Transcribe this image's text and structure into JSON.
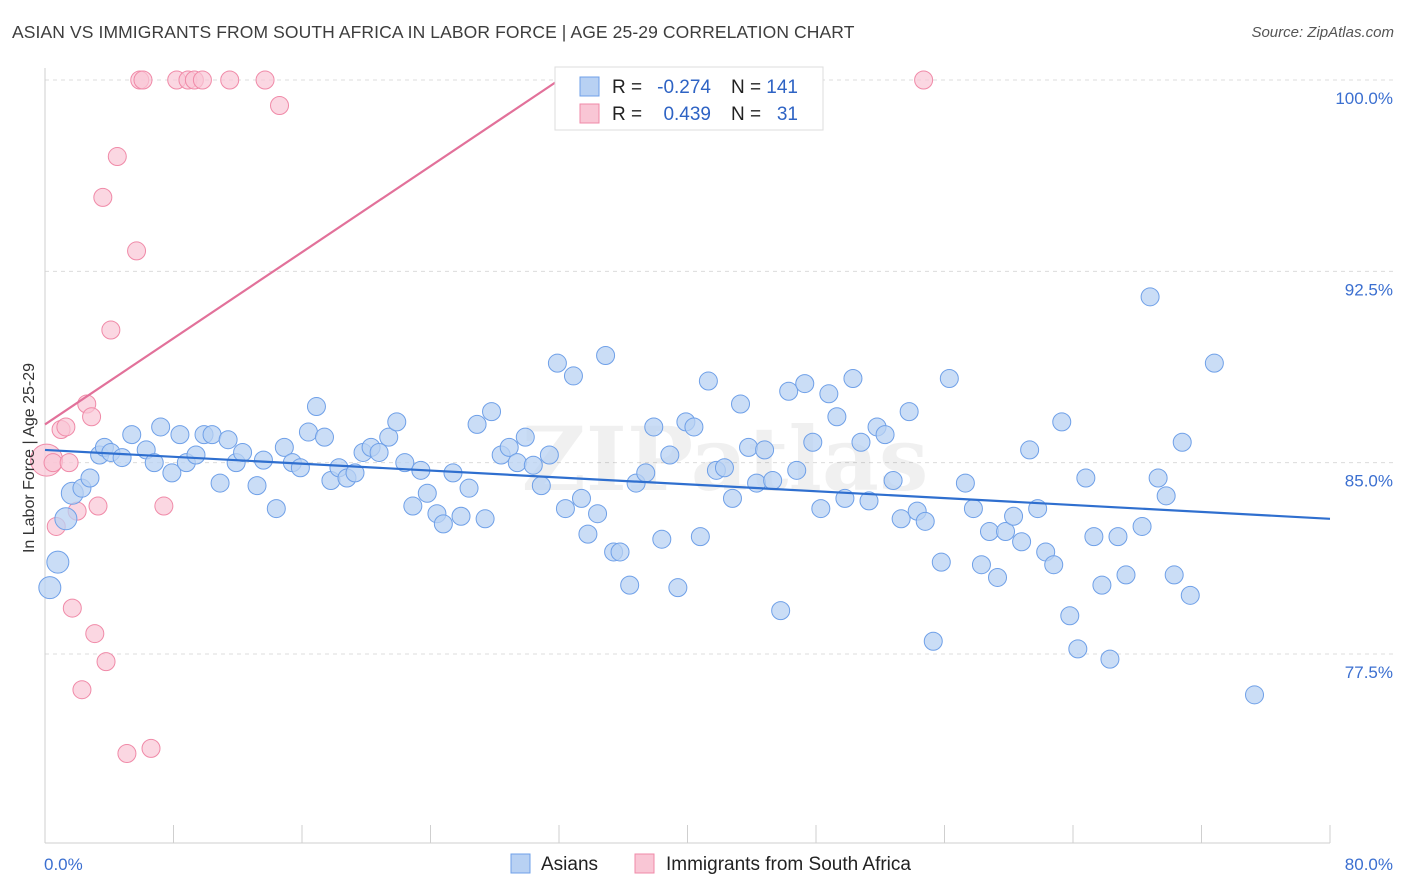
{
  "title": "ASIAN VS IMMIGRANTS FROM SOUTH AFRICA IN LABOR FORCE | AGE 25-29 CORRELATION CHART",
  "source": "Source: ZipAtlas.com",
  "watermark": "ZIPatlas",
  "chart_data": {
    "type": "scatter",
    "ylabel": "In Labor Force | Age 25-29",
    "xlim": [
      0,
      80
    ],
    "ylim": [
      71.0,
      100.8
    ],
    "x_tick_labels": [
      {
        "value": 0,
        "label": "0.0%"
      },
      {
        "value": 80,
        "label": "80.0%"
      }
    ],
    "y_ticks": [
      {
        "value": 100.0,
        "label": "100.0%"
      },
      {
        "value": 92.5,
        "label": "92.5%"
      },
      {
        "value": 85.0,
        "label": "85.0%"
      },
      {
        "value": 77.5,
        "label": "77.5%"
      }
    ],
    "grid": "horizontal dashed",
    "legend_box": {
      "rows": [
        {
          "r_label": "R =",
          "r_value": "-0.274",
          "n_label": "N =",
          "n_value": "141",
          "color": "#6fa0e8"
        },
        {
          "r_label": "R =",
          "r_value": "0.439",
          "n_label": "N =",
          "n_value": "31",
          "color": "#f08aa8"
        }
      ]
    },
    "bottom_legend": [
      "Asians",
      "Immigrants from South Africa"
    ],
    "series": [
      {
        "name": "Asians",
        "color": "#6fa0e8",
        "trend": {
          "x": [
            0,
            80
          ],
          "y": [
            85.5,
            82.8
          ]
        },
        "points": [
          [
            0.3,
            80.1
          ],
          [
            0.8,
            81.1
          ],
          [
            1.3,
            82.8
          ],
          [
            1.7,
            83.8
          ],
          [
            2.3,
            84.0
          ],
          [
            2.8,
            84.4
          ],
          [
            3.4,
            85.3
          ],
          [
            3.7,
            85.6
          ],
          [
            4.1,
            85.4
          ],
          [
            4.8,
            85.2
          ],
          [
            5.4,
            86.1
          ],
          [
            6.3,
            85.5
          ],
          [
            6.8,
            85.0
          ],
          [
            7.2,
            86.4
          ],
          [
            7.9,
            84.6
          ],
          [
            8.4,
            86.1
          ],
          [
            8.8,
            85.0
          ],
          [
            9.4,
            85.3
          ],
          [
            9.9,
            86.1
          ],
          [
            10.4,
            86.1
          ],
          [
            10.9,
            84.2
          ],
          [
            11.4,
            85.9
          ],
          [
            11.9,
            85.0
          ],
          [
            12.3,
            85.4
          ],
          [
            13.2,
            84.1
          ],
          [
            13.6,
            85.1
          ],
          [
            14.4,
            83.2
          ],
          [
            14.9,
            85.6
          ],
          [
            15.4,
            85.0
          ],
          [
            15.9,
            84.8
          ],
          [
            16.4,
            86.2
          ],
          [
            16.9,
            87.2
          ],
          [
            17.4,
            86.0
          ],
          [
            17.8,
            84.3
          ],
          [
            18.3,
            84.8
          ],
          [
            18.8,
            84.4
          ],
          [
            19.3,
            84.6
          ],
          [
            19.8,
            85.4
          ],
          [
            20.3,
            85.6
          ],
          [
            20.8,
            85.4
          ],
          [
            21.4,
            86.0
          ],
          [
            21.9,
            86.6
          ],
          [
            22.4,
            85.0
          ],
          [
            22.9,
            83.3
          ],
          [
            23.4,
            84.7
          ],
          [
            23.8,
            83.8
          ],
          [
            24.4,
            83.0
          ],
          [
            24.8,
            82.6
          ],
          [
            25.4,
            84.6
          ],
          [
            25.9,
            82.9
          ],
          [
            26.4,
            84.0
          ],
          [
            26.9,
            86.5
          ],
          [
            27.4,
            82.8
          ],
          [
            27.8,
            87.0
          ],
          [
            28.4,
            85.3
          ],
          [
            28.9,
            85.6
          ],
          [
            29.4,
            85.0
          ],
          [
            29.9,
            86.0
          ],
          [
            30.4,
            84.9
          ],
          [
            30.9,
            84.1
          ],
          [
            31.4,
            85.3
          ],
          [
            31.9,
            88.9
          ],
          [
            32.4,
            83.2
          ],
          [
            32.9,
            88.4
          ],
          [
            33.4,
            83.6
          ],
          [
            33.8,
            82.2
          ],
          [
            34.4,
            83.0
          ],
          [
            34.9,
            89.2
          ],
          [
            35.4,
            81.5
          ],
          [
            35.8,
            81.5
          ],
          [
            36.4,
            80.2
          ],
          [
            36.8,
            84.2
          ],
          [
            37.4,
            84.6
          ],
          [
            37.9,
            86.4
          ],
          [
            38.4,
            82.0
          ],
          [
            38.9,
            85.3
          ],
          [
            39.4,
            80.1
          ],
          [
            39.9,
            86.6
          ],
          [
            40.4,
            86.4
          ],
          [
            40.8,
            82.1
          ],
          [
            41.3,
            88.2
          ],
          [
            41.8,
            84.7
          ],
          [
            42.3,
            84.8
          ],
          [
            42.8,
            83.6
          ],
          [
            43.3,
            87.3
          ],
          [
            43.8,
            85.6
          ],
          [
            44.3,
            84.2
          ],
          [
            44.8,
            85.5
          ],
          [
            45.3,
            84.3
          ],
          [
            45.8,
            79.2
          ],
          [
            46.3,
            87.8
          ],
          [
            46.8,
            84.7
          ],
          [
            47.3,
            88.1
          ],
          [
            47.8,
            85.8
          ],
          [
            48.3,
            83.2
          ],
          [
            48.8,
            87.7
          ],
          [
            49.3,
            86.8
          ],
          [
            49.8,
            83.6
          ],
          [
            50.3,
            88.3
          ],
          [
            50.8,
            85.8
          ],
          [
            51.3,
            83.5
          ],
          [
            51.8,
            86.4
          ],
          [
            52.3,
            86.1
          ],
          [
            52.8,
            84.3
          ],
          [
            53.3,
            82.8
          ],
          [
            53.8,
            87.0
          ],
          [
            54.3,
            83.1
          ],
          [
            54.8,
            82.7
          ],
          [
            55.3,
            78.0
          ],
          [
            55.8,
            81.1
          ],
          [
            56.3,
            88.3
          ],
          [
            57.3,
            84.2
          ],
          [
            57.8,
            83.2
          ],
          [
            58.3,
            81.0
          ],
          [
            58.8,
            82.3
          ],
          [
            59.3,
            80.5
          ],
          [
            59.8,
            82.3
          ],
          [
            60.3,
            82.9
          ],
          [
            60.8,
            81.9
          ],
          [
            61.3,
            85.5
          ],
          [
            61.8,
            83.2
          ],
          [
            62.3,
            81.5
          ],
          [
            62.8,
            81.0
          ],
          [
            63.3,
            86.6
          ],
          [
            63.8,
            79.0
          ],
          [
            64.3,
            77.7
          ],
          [
            64.8,
            84.4
          ],
          [
            65.3,
            82.1
          ],
          [
            65.8,
            80.2
          ],
          [
            66.3,
            77.3
          ],
          [
            66.8,
            82.1
          ],
          [
            67.3,
            80.6
          ],
          [
            68.3,
            82.5
          ],
          [
            68.8,
            91.5
          ],
          [
            69.3,
            84.4
          ],
          [
            69.8,
            83.7
          ],
          [
            70.3,
            80.6
          ],
          [
            70.8,
            85.8
          ],
          [
            71.3,
            79.8
          ],
          [
            72.8,
            88.9
          ],
          [
            75.3,
            75.9
          ]
        ]
      },
      {
        "name": "Immigrants from South Africa",
        "color": "#f08aa8",
        "trend": {
          "x": [
            0,
            32.0
          ],
          "y": [
            86.5,
            100.0
          ]
        },
        "points": [
          [
            0.1,
            85.1
          ],
          [
            0.5,
            85.0
          ],
          [
            0.7,
            82.5
          ],
          [
            1.0,
            86.3
          ],
          [
            1.3,
            86.4
          ],
          [
            1.5,
            85.0
          ],
          [
            1.7,
            79.3
          ],
          [
            2.0,
            83.1
          ],
          [
            2.3,
            76.1
          ],
          [
            2.6,
            87.3
          ],
          [
            2.9,
            86.8
          ],
          [
            3.1,
            78.3
          ],
          [
            3.3,
            83.3
          ],
          [
            3.6,
            95.4
          ],
          [
            3.8,
            77.2
          ],
          [
            4.1,
            90.2
          ],
          [
            4.5,
            97.0
          ],
          [
            5.1,
            73.6
          ],
          [
            5.7,
            93.3
          ],
          [
            5.9,
            100.0
          ],
          [
            6.1,
            100.0
          ],
          [
            6.6,
            73.8
          ],
          [
            7.4,
            83.3
          ],
          [
            8.2,
            100.0
          ],
          [
            8.9,
            100.0
          ],
          [
            9.3,
            100.0
          ],
          [
            9.8,
            100.0
          ],
          [
            11.5,
            100.0
          ],
          [
            13.7,
            100.0
          ],
          [
            14.6,
            99.0
          ],
          [
            54.7,
            100.0
          ]
        ]
      }
    ]
  }
}
